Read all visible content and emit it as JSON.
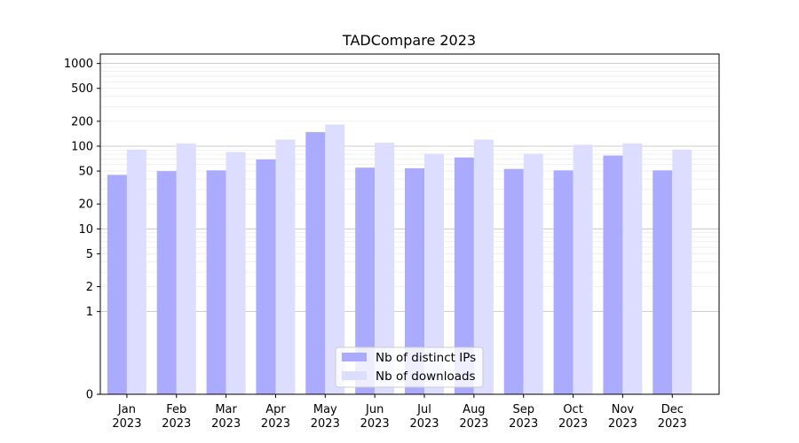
{
  "chart_data": {
    "type": "bar",
    "title": "TADCompare 2023",
    "xlabel": "",
    "ylabel": "",
    "y_scale": "symlog",
    "ylim": [
      0,
      1300
    ],
    "y_ticks": [
      0,
      1,
      2,
      5,
      10,
      20,
      50,
      100,
      200,
      500,
      1000
    ],
    "grid": true,
    "legend_position": "bottom-center",
    "categories": [
      [
        "Jan",
        "2023"
      ],
      [
        "Feb",
        "2023"
      ],
      [
        "Mar",
        "2023"
      ],
      [
        "Apr",
        "2023"
      ],
      [
        "May",
        "2023"
      ],
      [
        "Jun",
        "2023"
      ],
      [
        "Jul",
        "2023"
      ],
      [
        "Aug",
        "2023"
      ],
      [
        "Sep",
        "2023"
      ],
      [
        "Oct",
        "2023"
      ],
      [
        "Nov",
        "2023"
      ],
      [
        "Dec",
        "2023"
      ]
    ],
    "series": [
      {
        "name": "Nb of distinct IPs",
        "color": "#aaaaff",
        "values": [
          45,
          50,
          51,
          69,
          148,
          55,
          54,
          73,
          53,
          51,
          77,
          51
        ]
      },
      {
        "name": "Nb of downloads",
        "color": "#ddddff",
        "values": [
          91,
          108,
          85,
          120,
          183,
          110,
          81,
          120,
          81,
          104,
          108,
          91
        ]
      }
    ]
  }
}
